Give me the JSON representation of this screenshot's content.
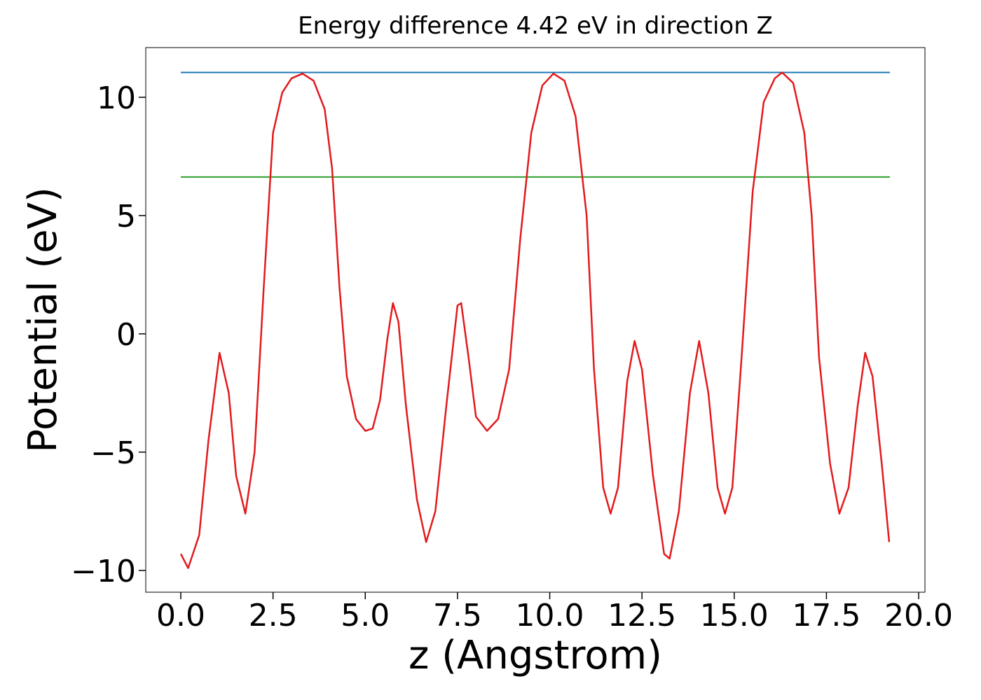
{
  "chart_data": {
    "type": "line",
    "title": "Energy difference 4.42 eV in direction Z",
    "xlabel": "z (Angstrom)",
    "ylabel": "Potential (eV)",
    "xlim": [
      -0.95,
      20.17
    ],
    "ylim": [
      -10.92,
      12.1
    ],
    "xticks": [
      {
        "value": 0,
        "label": "0.0"
      },
      2.5,
      {
        "value": 5,
        "label": "5.0"
      },
      7.5,
      {
        "value": 10,
        "label": "10.0"
      },
      12.5,
      {
        "value": 15,
        "label": "15.0"
      },
      17.5,
      {
        "value": 20,
        "label": "20.0"
      }
    ],
    "yticks": [
      {
        "value": -10,
        "label": "−10"
      },
      {
        "value": -5,
        "label": "−5"
      },
      0,
      5,
      10
    ],
    "x": [
      0,
      0.2,
      0.5,
      0.75,
      1.05,
      1.3,
      1.5,
      1.75,
      2.0,
      2.25,
      2.5,
      2.75,
      3.0,
      3.3,
      3.6,
      3.9,
      4.1,
      4.3,
      4.5,
      4.75,
      5.0,
      5.2,
      5.4,
      5.6,
      5.75,
      5.9,
      6.1,
      6.4,
      6.65,
      6.9,
      7.2,
      7.5,
      7.6,
      7.8,
      8.0,
      8.3,
      8.6,
      8.9,
      9.2,
      9.5,
      9.8,
      10.1,
      10.4,
      10.7,
      11.0,
      11.2,
      11.45,
      11.65,
      11.85,
      12.1,
      12.3,
      12.5,
      12.8,
      13.1,
      13.25,
      13.5,
      13.8,
      14.05,
      14.3,
      14.55,
      14.75,
      14.95,
      15.2,
      15.5,
      15.8,
      16.1,
      16.3,
      16.6,
      16.9,
      17.1,
      17.3,
      17.6,
      17.85,
      18.1,
      18.35,
      18.55,
      18.75,
      19.0,
      19.2
    ],
    "series": [
      {
        "color": "#e31a1c",
        "values": [
          -9.3,
          -9.9,
          -8.5,
          -4.5,
          -0.8,
          -2.5,
          -6,
          -7.6,
          -5,
          2,
          8.5,
          10.2,
          10.8,
          11.0,
          10.7,
          9.5,
          7,
          2,
          -1.8,
          -3.6,
          -4.1,
          -4,
          -2.8,
          -0.2,
          1.3,
          0.5,
          -3,
          -7,
          -8.8,
          -7.5,
          -3,
          1.2,
          1.3,
          -1,
          -3.5,
          -4.1,
          -3.6,
          -1.5,
          4,
          8.5,
          10.5,
          11.0,
          10.7,
          9.2,
          5,
          -1.5,
          -6.5,
          -7.6,
          -6.5,
          -2,
          -0.3,
          -1.5,
          -6,
          -9.3,
          -9.5,
          -7.5,
          -2.5,
          -0.3,
          -2.5,
          -6.5,
          -7.6,
          -6.5,
          -1,
          6,
          9.8,
          10.8,
          11.05,
          10.6,
          8.5,
          5,
          -1,
          -5.5,
          -7.6,
          -6.5,
          -3,
          -0.8,
          -1.8,
          -5.5,
          -8.8
        ]
      }
    ],
    "hlines": [
      {
        "color": "#1f77b4",
        "value": 11.05,
        "xrange": [
          0,
          19.22
        ]
      },
      {
        "color": "#2ca02c",
        "value": 6.63,
        "xrange": [
          0,
          19.22
        ]
      }
    ]
  }
}
